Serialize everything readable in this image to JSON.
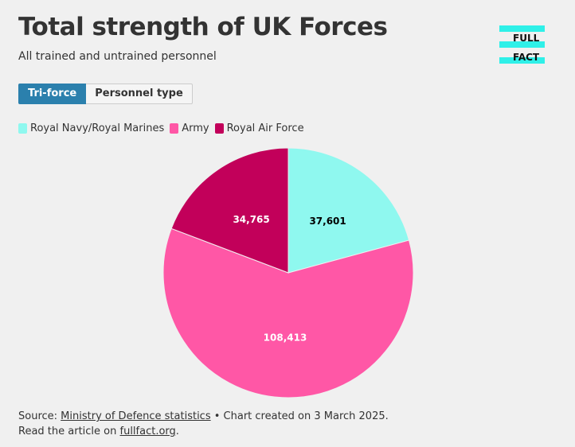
{
  "header": {
    "title": "Total strength of UK Forces",
    "subtitle": "All trained and untrained personnel"
  },
  "logo": {
    "line1": "FULL",
    "line2": "FACT",
    "accent_color": "#2ff0e8"
  },
  "tabs": [
    {
      "label": "Tri-force",
      "active": true
    },
    {
      "label": "Personnel type",
      "active": false
    }
  ],
  "chart_data": {
    "type": "pie",
    "title": "Total strength of UK Forces",
    "subtitle": "All trained and untrained personnel",
    "legend_position": "top-left",
    "series": [
      {
        "name": "Royal Navy/Royal Marines",
        "value": 37601,
        "label": "37,601",
        "color": "#8ff8ef",
        "label_color": "#000000"
      },
      {
        "name": "Army",
        "value": 108413,
        "label": "108,413",
        "color": "#ff57a6",
        "label_color": "#ffffff"
      },
      {
        "name": "Royal Air Force",
        "value": 34765,
        "label": "34,765",
        "color": "#c2005a",
        "label_color": "#ffffff"
      }
    ]
  },
  "footer": {
    "source_prefix": "Source: ",
    "source_link": "Ministry of Defence statistics",
    "source_suffix": " • Chart created on 3 March 2025.",
    "article_prefix": "Read the article on ",
    "article_link": "fullfact.org",
    "article_suffix": "."
  }
}
